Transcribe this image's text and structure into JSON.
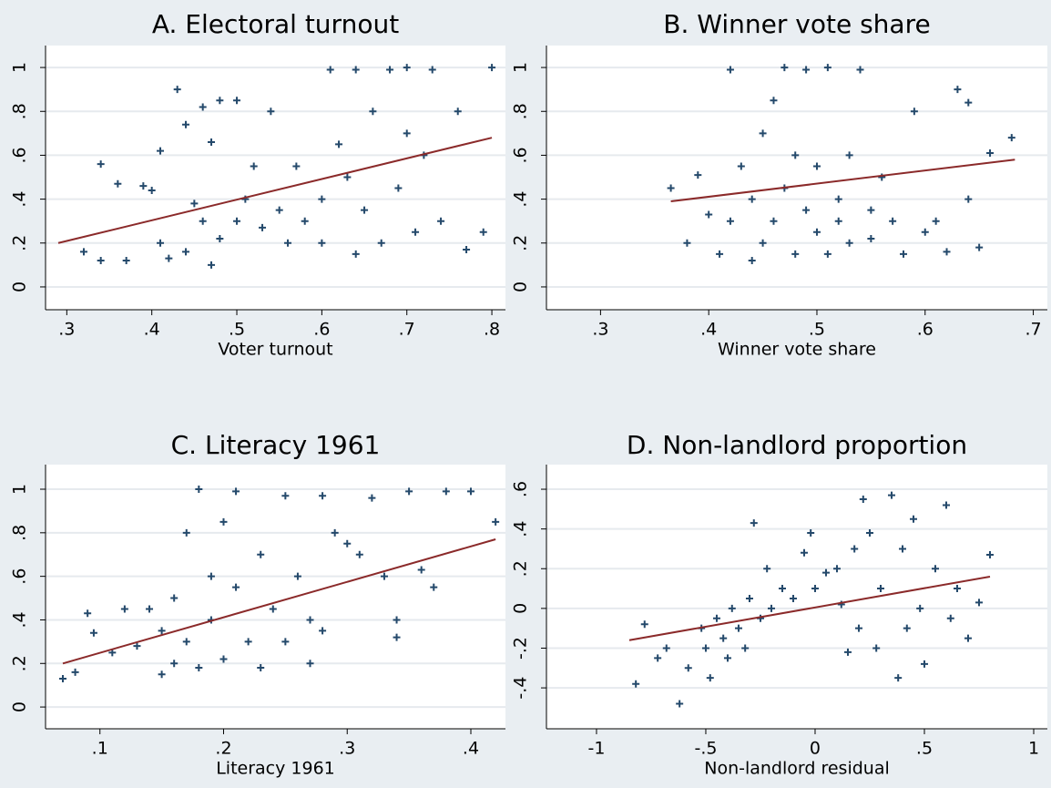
{
  "chart_data": [
    {
      "type": "scatter",
      "title": "A. Electoral turnout",
      "x_label": "Voter turnout",
      "color": "#24496b",
      "grid": true,
      "xlim": [
        0.275,
        0.816
      ],
      "ylim": [
        -0.104,
        1.1
      ],
      "xticks": [
        {
          "value": 0.3,
          "label": ".3"
        },
        {
          "value": 0.4,
          "label": ".4"
        },
        {
          "value": 0.5,
          "label": ".5"
        },
        {
          "value": 0.6,
          "label": ".6"
        },
        {
          "value": 0.7,
          "label": ".7"
        },
        {
          "value": 0.8,
          "label": ".8"
        }
      ],
      "yticks": [
        0,
        {
          "value": 0.2,
          "label": ".2"
        },
        {
          "value": 0.4,
          "label": ".4"
        },
        {
          "value": 0.6,
          "label": ".6"
        },
        {
          "value": 0.8,
          "label": ".8"
        },
        1
      ],
      "x": [
        0.32,
        0.34,
        0.34,
        0.36,
        0.37,
        0.39,
        0.4,
        0.41,
        0.41,
        0.42,
        0.43,
        0.44,
        0.44,
        0.45,
        0.46,
        0.46,
        0.47,
        0.47,
        0.48,
        0.48,
        0.5,
        0.5,
        0.51,
        0.52,
        0.53,
        0.54,
        0.55,
        0.56,
        0.57,
        0.58,
        0.6,
        0.6,
        0.61,
        0.62,
        0.63,
        0.64,
        0.64,
        0.65,
        0.66,
        0.67,
        0.68,
        0.69,
        0.7,
        0.7,
        0.71,
        0.72,
        0.73,
        0.74,
        0.76,
        0.77,
        0.79,
        0.8
      ],
      "values": [
        0.16,
        0.12,
        0.56,
        0.47,
        0.12,
        0.46,
        0.44,
        0.62,
        0.2,
        0.13,
        0.9,
        0.16,
        0.74,
        0.38,
        0.3,
        0.82,
        0.66,
        0.1,
        0.85,
        0.22,
        0.3,
        0.85,
        0.4,
        0.55,
        0.27,
        0.8,
        0.35,
        0.2,
        0.55,
        0.3,
        0.4,
        0.2,
        0.99,
        0.65,
        0.5,
        0.15,
        0.99,
        0.35,
        0.8,
        0.2,
        0.99,
        0.45,
        0.7,
        1.0,
        0.25,
        0.6,
        0.99,
        0.3,
        0.8,
        0.17,
        0.25,
        1.0
      ],
      "fit_line": {
        "color": "#8b2a2a",
        "x": [
          0.29,
          0.8
        ],
        "y": [
          0.2,
          0.68
        ]
      }
    },
    {
      "type": "scatter",
      "title": "B. Winner vote share",
      "x_label": "Winner vote share",
      "color": "#24496b",
      "grid": true,
      "xlim": [
        0.25,
        0.713
      ],
      "ylim": [
        -0.104,
        1.1
      ],
      "xticks": [
        {
          "value": 0.3,
          "label": ".3"
        },
        {
          "value": 0.4,
          "label": ".4"
        },
        {
          "value": 0.5,
          "label": ".5"
        },
        {
          "value": 0.6,
          "label": ".6"
        },
        {
          "value": 0.7,
          "label": ".7"
        }
      ],
      "yticks": [
        0,
        {
          "value": 0.2,
          "label": ".2"
        },
        {
          "value": 0.4,
          "label": ".4"
        },
        {
          "value": 0.6,
          "label": ".6"
        },
        {
          "value": 0.8,
          "label": ".8"
        },
        1
      ],
      "x": [
        0.365,
        0.38,
        0.39,
        0.4,
        0.41,
        0.42,
        0.42,
        0.43,
        0.44,
        0.44,
        0.45,
        0.45,
        0.46,
        0.46,
        0.47,
        0.47,
        0.48,
        0.48,
        0.49,
        0.49,
        0.5,
        0.5,
        0.51,
        0.51,
        0.52,
        0.52,
        0.53,
        0.53,
        0.54,
        0.55,
        0.55,
        0.56,
        0.57,
        0.58,
        0.59,
        0.6,
        0.61,
        0.62,
        0.63,
        0.64,
        0.65,
        0.66,
        0.64,
        0.68
      ],
      "values": [
        0.45,
        0.2,
        0.51,
        0.33,
        0.15,
        0.3,
        0.99,
        0.55,
        0.12,
        0.4,
        0.2,
        0.7,
        0.3,
        0.85,
        1.0,
        0.45,
        0.15,
        0.6,
        0.35,
        0.99,
        0.25,
        0.55,
        1.0,
        0.15,
        0.4,
        0.3,
        0.6,
        0.2,
        0.99,
        0.35,
        0.22,
        0.5,
        0.3,
        0.15,
        0.8,
        0.25,
        0.3,
        0.16,
        0.9,
        0.4,
        0.18,
        0.61,
        0.84,
        0.68
      ],
      "fit_line": {
        "color": "#8b2a2a",
        "x": [
          0.365,
          0.683
        ],
        "y": [
          0.39,
          0.58
        ]
      }
    },
    {
      "type": "scatter",
      "title": "C. Literacy 1961",
      "x_label": "Literacy 1961",
      "color": "#24496b",
      "grid": true,
      "xlim": [
        0.056,
        0.428
      ],
      "ylim": [
        -0.1,
        1.113
      ],
      "xticks": [
        {
          "value": 0.1,
          "label": ".1"
        },
        {
          "value": 0.2,
          "label": ".2"
        },
        {
          "value": 0.3,
          "label": ".3"
        },
        {
          "value": 0.4,
          "label": ".4"
        }
      ],
      "yticks": [
        0,
        {
          "value": 0.2,
          "label": ".2"
        },
        {
          "value": 0.4,
          "label": ".4"
        },
        {
          "value": 0.6,
          "label": ".6"
        },
        {
          "value": 0.8,
          "label": ".8"
        },
        1
      ],
      "x": [
        0.07,
        0.08,
        0.09,
        0.095,
        0.11,
        0.12,
        0.13,
        0.14,
        0.15,
        0.15,
        0.16,
        0.16,
        0.17,
        0.17,
        0.18,
        0.18,
        0.19,
        0.19,
        0.2,
        0.2,
        0.21,
        0.21,
        0.22,
        0.23,
        0.23,
        0.24,
        0.25,
        0.25,
        0.26,
        0.27,
        0.27,
        0.28,
        0.28,
        0.29,
        0.3,
        0.31,
        0.32,
        0.33,
        0.34,
        0.34,
        0.35,
        0.36,
        0.37,
        0.38,
        0.4,
        0.42
      ],
      "values": [
        0.13,
        0.16,
        0.43,
        0.34,
        0.25,
        0.45,
        0.28,
        0.45,
        0.15,
        0.35,
        0.2,
        0.5,
        0.8,
        0.3,
        1.0,
        0.18,
        0.6,
        0.4,
        0.85,
        0.22,
        0.55,
        0.99,
        0.3,
        0.7,
        0.18,
        0.45,
        0.97,
        0.3,
        0.6,
        0.2,
        0.4,
        0.97,
        0.35,
        0.8,
        0.75,
        0.7,
        0.96,
        0.6,
        0.4,
        0.32,
        0.99,
        0.63,
        0.55,
        0.99,
        0.99,
        0.85
      ],
      "fit_line": {
        "color": "#8b2a2a",
        "x": [
          0.07,
          0.42
        ],
        "y": [
          0.2,
          0.77
        ]
      }
    },
    {
      "type": "scatter",
      "title": "D. Non-landlord proportion",
      "x_label": "Non-landlord residual",
      "color": "#24496b",
      "grid": true,
      "xlim": [
        -1.229,
        1.0625
      ],
      "ylim": [
        -0.606,
        0.724
      ],
      "xticks": [
        -1,
        {
          "value": -0.5,
          "label": "-.5"
        },
        0,
        {
          "value": 0.5,
          "label": ".5"
        },
        1
      ],
      "yticks": [
        {
          "value": -0.4,
          "label": "-.4"
        },
        {
          "value": -0.2,
          "label": "-.2"
        },
        0,
        {
          "value": 0.2,
          "label": ".2"
        },
        {
          "value": 0.4,
          "label": ".4"
        },
        {
          "value": 0.6,
          "label": ".6"
        }
      ],
      "x": [
        -0.82,
        -0.78,
        -0.72,
        -0.68,
        -0.62,
        -0.58,
        -0.52,
        -0.5,
        -0.48,
        -0.45,
        -0.42,
        -0.4,
        -0.38,
        -0.35,
        -0.32,
        -0.3,
        -0.28,
        -0.25,
        -0.22,
        -0.2,
        -0.15,
        -0.1,
        -0.05,
        -0.02,
        0.0,
        0.05,
        0.1,
        0.12,
        0.15,
        0.18,
        0.2,
        0.22,
        0.25,
        0.28,
        0.3,
        0.35,
        0.38,
        0.4,
        0.42,
        0.45,
        0.48,
        0.5,
        0.55,
        0.6,
        0.62,
        0.65,
        0.7,
        0.75,
        0.8
      ],
      "values": [
        -0.38,
        -0.08,
        -0.25,
        -0.2,
        -0.48,
        -0.3,
        -0.1,
        -0.2,
        -0.35,
        -0.05,
        -0.15,
        -0.25,
        0.0,
        -0.1,
        -0.2,
        0.05,
        0.43,
        -0.05,
        0.2,
        0.0,
        0.1,
        0.05,
        0.28,
        0.38,
        0.1,
        0.18,
        0.2,
        0.02,
        -0.22,
        0.3,
        -0.1,
        0.55,
        0.38,
        -0.2,
        0.1,
        0.57,
        -0.35,
        0.3,
        -0.1,
        0.45,
        0.0,
        -0.28,
        0.2,
        0.52,
        -0.05,
        0.1,
        -0.15,
        0.03,
        0.27
      ],
      "fit_line": {
        "color": "#8b2a2a",
        "x": [
          -0.85,
          0.8
        ],
        "y": [
          -0.16,
          0.16
        ]
      }
    }
  ]
}
